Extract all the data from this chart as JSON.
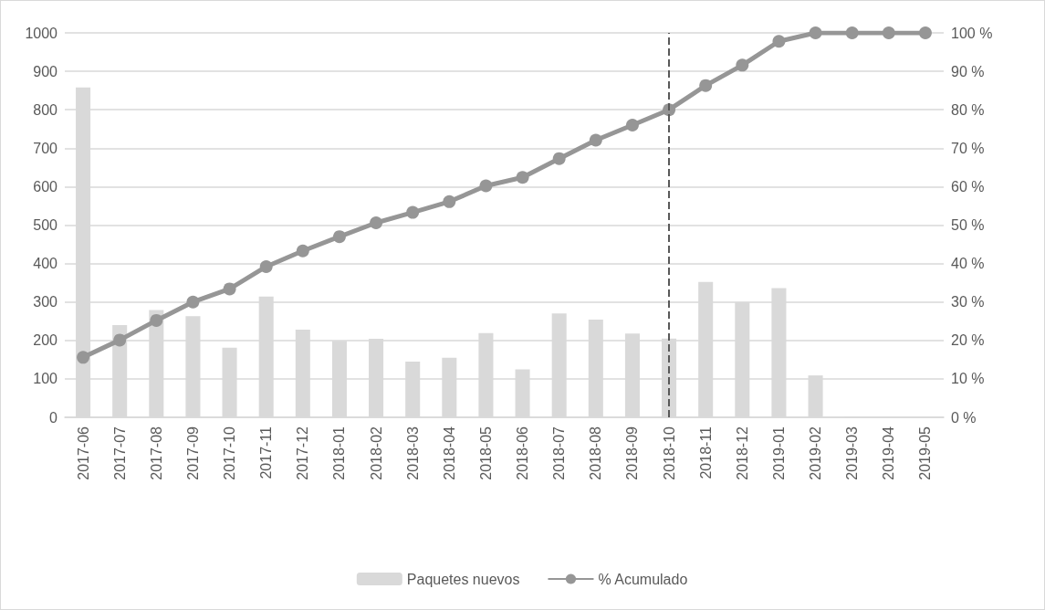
{
  "chart_data": {
    "type": "bar",
    "categories": [
      "2017-06",
      "2017-07",
      "2017-08",
      "2017-09",
      "2017-10",
      "2017-11",
      "2017-12",
      "2018-01",
      "2018-02",
      "2018-03",
      "2018-04",
      "2018-05",
      "2018-06",
      "2018-07",
      "2018-08",
      "2018-09",
      "2018-10",
      "2018-11",
      "2018-12",
      "2019-01",
      "2019-02",
      "2019-03",
      "2019-04",
      "2019-05"
    ],
    "series": [
      {
        "name": "Paquetes nuevos",
        "color": "#d9d9d9",
        "values": [
          858,
          240,
          279,
          263,
          181,
          314,
          228,
          199,
          204,
          145,
          155,
          219,
          125,
          270,
          254,
          218,
          205,
          352,
          300,
          336,
          109,
          2,
          0,
          0
        ]
      },
      {
        "name": "% Acumulado",
        "type": "line",
        "axis": "y2",
        "color": "#969696",
        "marker": "circle",
        "values": [
          15.6,
          20.1,
          25.2,
          30,
          33.4,
          39.2,
          43.3,
          47,
          50.6,
          53.3,
          56.1,
          60.2,
          62.4,
          67.3,
          72.1,
          76,
          80,
          86.3,
          91.6,
          97.8,
          100,
          100,
          100,
          100
        ]
      }
    ],
    "ylim": [
      0,
      1000
    ],
    "yticks": [
      0,
      100,
      200,
      300,
      400,
      500,
      600,
      700,
      800,
      900,
      1000
    ],
    "y2lim": [
      0,
      100
    ],
    "y2ticks": [
      {
        "value": 0,
        "label": "0 %"
      },
      {
        "value": 10,
        "label": "10 %"
      },
      {
        "value": 20,
        "label": "20 %"
      },
      {
        "value": 30,
        "label": "30 %"
      },
      {
        "value": 40,
        "label": "40 %"
      },
      {
        "value": 50,
        "label": "50 %"
      },
      {
        "value": 60,
        "label": "60 %"
      },
      {
        "value": 70,
        "label": "70 %"
      },
      {
        "value": 80,
        "label": "80 %"
      },
      {
        "value": 90,
        "label": "90 %"
      },
      {
        "value": 100,
        "label": "100 %"
      }
    ],
    "ref_lines": [
      {
        "axis": "x",
        "value": "2018-10",
        "color": "#595959",
        "line_style": "dashed"
      }
    ],
    "grid": "y",
    "legend": "bottom"
  }
}
